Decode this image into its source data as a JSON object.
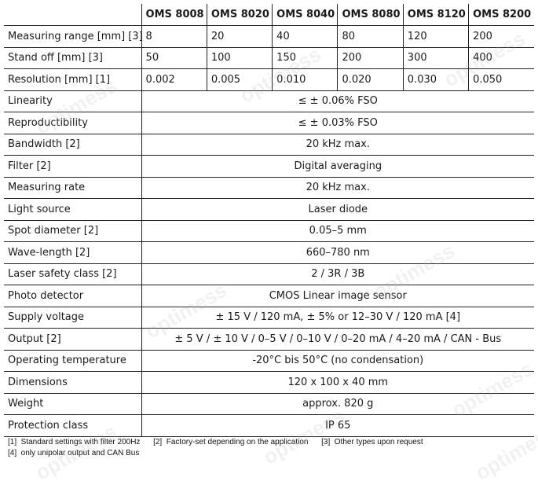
{
  "header": {
    "blank": "",
    "models": [
      "OMS 8008",
      "OMS 8020",
      "OMS 8040",
      "OMS 8080",
      "OMS 8120",
      "OMS 8200"
    ]
  },
  "model_rows": [
    {
      "label": "Measuring range [mm] [3]",
      "values": [
        "8",
        "20",
        "40",
        "80",
        "120",
        "200"
      ]
    },
    {
      "label": "Stand off [mm] [3]",
      "values": [
        "50",
        "100",
        "150",
        "200",
        "300",
        "400"
      ]
    },
    {
      "label": "Resolution [mm] [1]",
      "values": [
        "0.002",
        "0.005",
        "0.010",
        "0.020",
        "0.030",
        "0.050"
      ]
    }
  ],
  "common_rows": [
    {
      "label": "Linearity",
      "value": "≤ ± 0.06% FSO"
    },
    {
      "label": "Reproductibility",
      "value": "≤ ± 0.03% FSO"
    },
    {
      "label": "Bandwidth [2]",
      "value": "20 kHz max."
    },
    {
      "label": "Filter [2]",
      "value": "Digital averaging"
    },
    {
      "label": "Measuring rate",
      "value": "20 kHz max."
    },
    {
      "label": "Light source",
      "value": "Laser diode"
    },
    {
      "label": "Spot diameter [2]",
      "value": "0.05–5 mm"
    },
    {
      "label": "Wave-length [2]",
      "value": "660–780 nm"
    },
    {
      "label": "Laser safety class [2]",
      "value": "2 / 3R / 3B"
    },
    {
      "label": "Photo detector",
      "value": "CMOS Linear image sensor"
    },
    {
      "label": "Supply voltage",
      "value": "± 15 V / 120 mA, ± 5% or 12–30 V / 120 mA [4]"
    },
    {
      "label": "Output [2]",
      "value": "± 5 V / ± 10 V / 0–5 V / 0–10 V / 0–20 mA / 4–20 mA / CAN - Bus"
    },
    {
      "label": "Operating temperature",
      "value": "-20°C bis 50°C (no condensation)"
    },
    {
      "label": "Dimensions",
      "value": "120 x 100 x 40 mm"
    },
    {
      "label": "Weight",
      "value": "approx. 820 g"
    },
    {
      "label": "Protection class",
      "value": "IP 65"
    }
  ],
  "footnotes": {
    "line1": "[1]  Standard settings with filter 200Hz      [2]  Factory-set depending on the application      [3]  Other types upon request",
    "line2": "[4]  only unipolar output and CAN Bus"
  },
  "watermark": "optimess"
}
